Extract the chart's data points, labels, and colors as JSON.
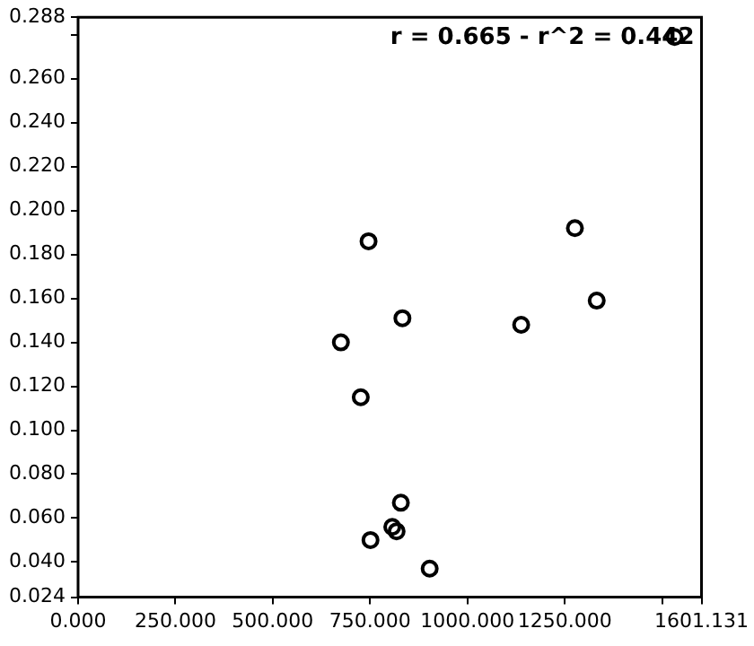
{
  "chart_data": {
    "type": "scatter",
    "x": [
      1532,
      746,
      1276,
      1332,
      833,
      1138,
      675,
      726,
      829,
      807,
      818,
      751,
      903
    ],
    "values": [
      0.279,
      0.186,
      0.192,
      0.159,
      0.151,
      0.148,
      0.14,
      0.115,
      0.067,
      0.056,
      0.054,
      0.05,
      0.037
    ],
    "color": "#000000",
    "marker": "circle",
    "grid": false,
    "xlim": [
      0,
      1601.131
    ],
    "xticks": [
      {
        "value": 0,
        "label": "0.000"
      },
      {
        "value": 250,
        "label": "250.000"
      },
      {
        "value": 500,
        "label": "500.000"
      },
      {
        "value": 750,
        "label": "750.000"
      },
      {
        "value": 1000,
        "label": "1000.000"
      },
      {
        "value": 1250,
        "label": "1250.000"
      },
      {
        "value": 1500,
        "label": null
      },
      {
        "value": 1601.131,
        "label": "1601.131"
      }
    ],
    "ylim": [
      0.024,
      0.288
    ],
    "yticks": [
      {
        "value": 0.024,
        "label": "0.024"
      },
      {
        "value": 0.04,
        "label": "0.040"
      },
      {
        "value": 0.06,
        "label": "0.060"
      },
      {
        "value": 0.08,
        "label": "0.080"
      },
      {
        "value": 0.1,
        "label": "0.100"
      },
      {
        "value": 0.12,
        "label": "0.120"
      },
      {
        "value": 0.14,
        "label": "0.140"
      },
      {
        "value": 0.16,
        "label": "0.160"
      },
      {
        "value": 0.18,
        "label": "0.180"
      },
      {
        "value": 0.2,
        "label": "0.200"
      },
      {
        "value": 0.22,
        "label": "0.220"
      },
      {
        "value": 0.24,
        "label": "0.240"
      },
      {
        "value": 0.26,
        "label": "0.260"
      },
      {
        "value": 0.28,
        "label": null
      },
      {
        "value": 0.288,
        "label": "0.288"
      }
    ],
    "annotations": [
      "r = 0.665 - r^2 = 0.442"
    ]
  }
}
